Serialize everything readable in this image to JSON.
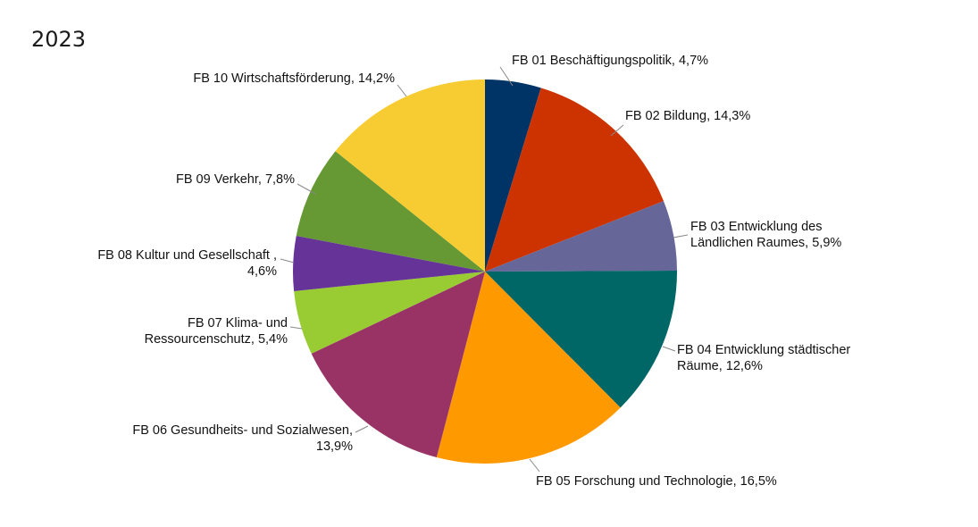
{
  "chart_data": {
    "type": "pie",
    "title": "2023",
    "slices": [
      {
        "label_lines": [
          "FB 01 Beschäftigungspolitik, 4,7%"
        ],
        "value": 4.7,
        "color": "#003366"
      },
      {
        "label_lines": [
          "FB 02 Bildung, 14,3%"
        ],
        "value": 14.3,
        "color": "#CC3300"
      },
      {
        "label_lines": [
          "FB 03 Entwicklung des",
          "Ländlichen Raumes, 5,9%"
        ],
        "value": 5.9,
        "color": "#666699"
      },
      {
        "label_lines": [
          "FB 04 Entwicklung städtischer",
          "Räume, 12,6%"
        ],
        "value": 12.6,
        "color": "#006666"
      },
      {
        "label_lines": [
          "FB 05 Forschung und Technologie, 16,5%"
        ],
        "value": 16.5,
        "color": "#FF9900"
      },
      {
        "label_lines": [
          "FB 06 Gesundheits- und Sozialwesen,",
          "13,9%"
        ],
        "value": 13.9,
        "color": "#993366"
      },
      {
        "label_lines": [
          "FB 07 Klima- und",
          "Ressourcenschutz, 5,4%"
        ],
        "value": 5.4,
        "color": "#99CC33"
      },
      {
        "label_lines": [
          "FB 08 Kultur und Gesellschaft ,",
          "4,6%"
        ],
        "value": 4.6,
        "color": "#663399"
      },
      {
        "label_lines": [
          "FB 09 Verkehr, 7,8%"
        ],
        "value": 7.8,
        "color": "#669933"
      },
      {
        "label_lines": [
          "FB 10 Wirtschaftsförderung, 14,2%"
        ],
        "value": 14.2,
        "color": "#F7CC33"
      }
    ]
  }
}
